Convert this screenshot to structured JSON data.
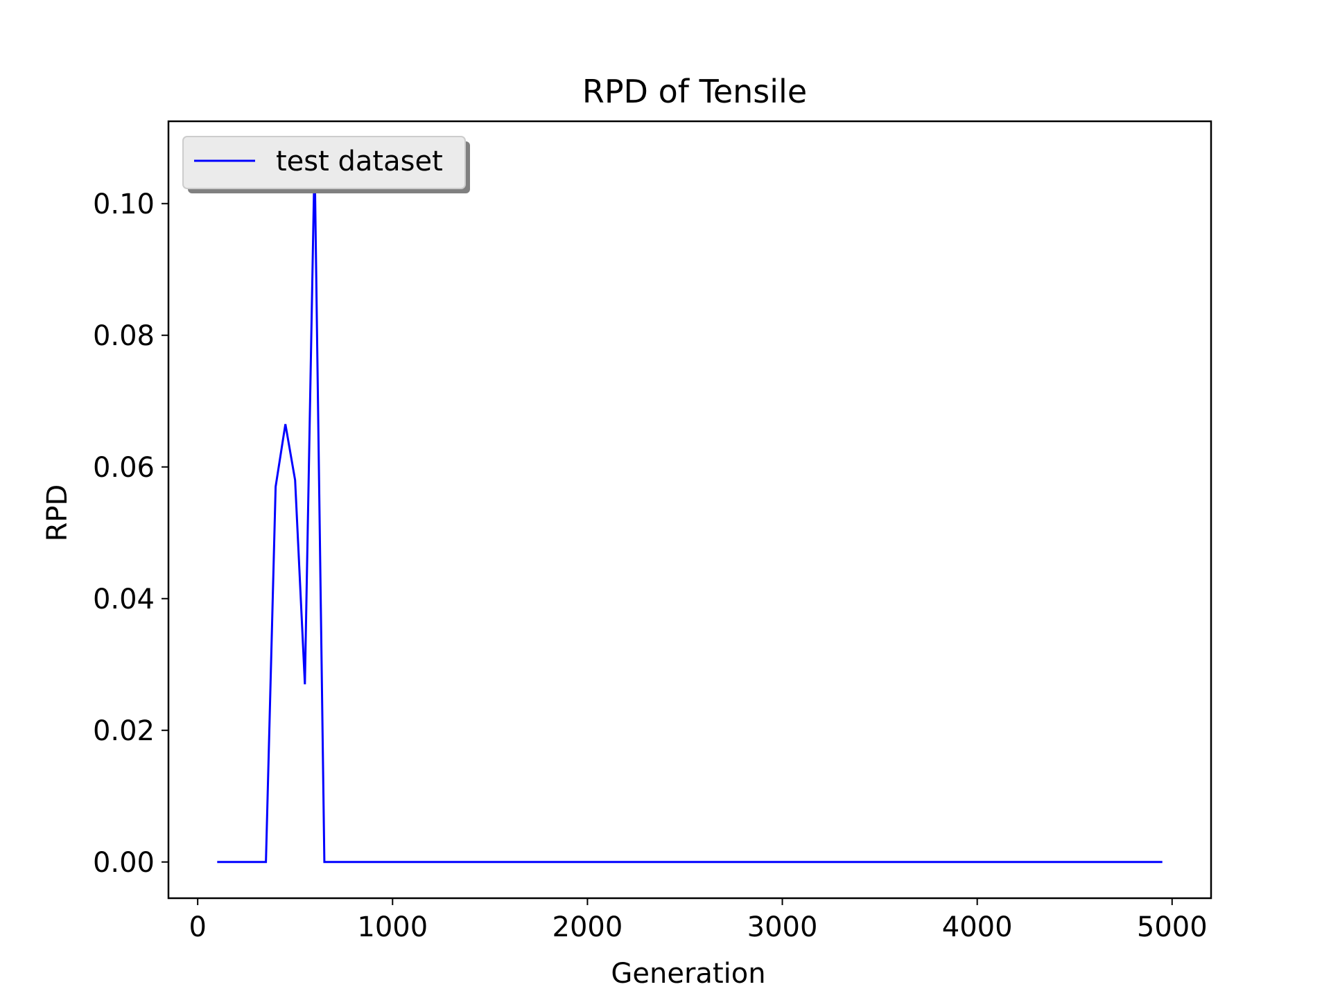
{
  "chart_data": {
    "type": "line",
    "title": "RPD of Tensile",
    "xlabel": "Generation",
    "ylabel": "RPD",
    "xlim": [
      -150,
      5200
    ],
    "ylim": [
      -0.0055,
      0.1125
    ],
    "xticks": [
      0,
      1000,
      2000,
      3000,
      4000,
      5000
    ],
    "xtick_labels": [
      "0",
      "1000",
      "2000",
      "3000",
      "4000",
      "5000"
    ],
    "yticks": [
      0.0,
      0.02,
      0.04,
      0.06,
      0.08,
      0.1
    ],
    "ytick_labels": [
      "0.00",
      "0.02",
      "0.04",
      "0.06",
      "0.08",
      "0.10"
    ],
    "grid": false,
    "legend_position": "upper left",
    "series": [
      {
        "name": "test dataset",
        "color": "#0000ff",
        "x": [
          100,
          150,
          200,
          250,
          300,
          350,
          400,
          450,
          500,
          550,
          600,
          650,
          700,
          750,
          800,
          900,
          1000,
          1500,
          2000,
          2500,
          3000,
          3500,
          4000,
          4500,
          4950
        ],
        "y": [
          0.0,
          0.0,
          0.0,
          0.0,
          0.0,
          0.0,
          0.057,
          0.0665,
          0.058,
          0.027,
          0.107,
          0.0,
          0.0,
          0.0,
          0.0,
          0.0,
          0.0,
          0.0,
          0.0,
          0.0,
          0.0,
          0.0,
          0.0,
          0.0,
          0.0
        ]
      }
    ]
  }
}
